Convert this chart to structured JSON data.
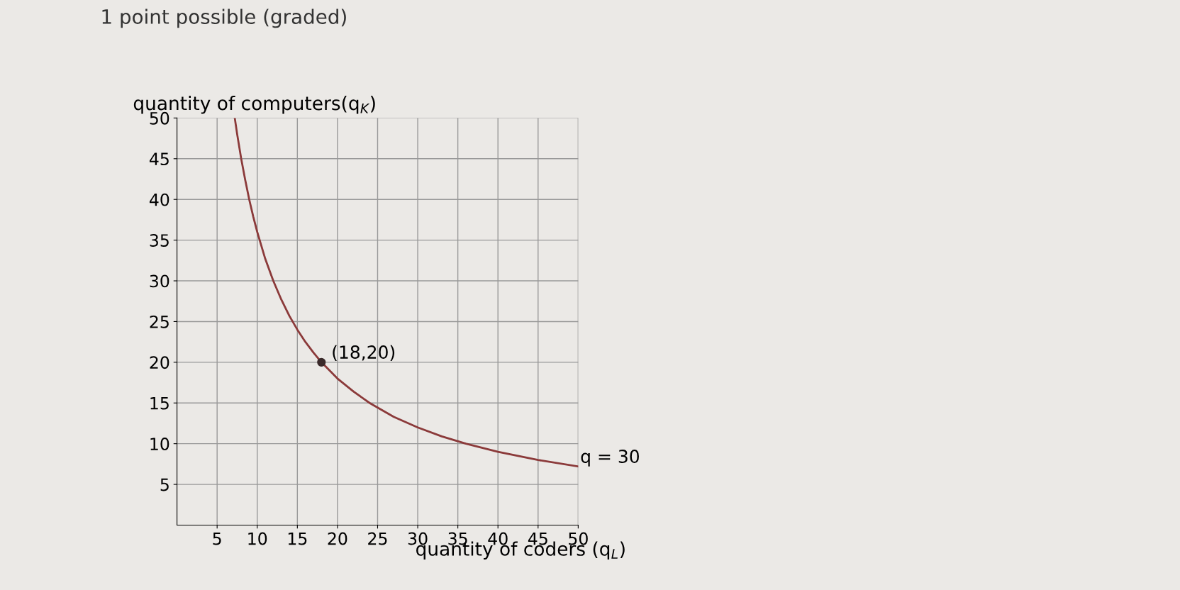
{
  "chart_data": {
    "type": "line",
    "title": "1 point possible (graded)",
    "xlabel": "quantity of coders (q$_{L}$)",
    "ylabel": "quantity of computers(q$_{K}$)",
    "series": [
      {
        "color": "#8b3a3a",
        "x": [
          7.2,
          7.5,
          8,
          8.5,
          9,
          9.5,
          10,
          11,
          12,
          13,
          14,
          15,
          16,
          17,
          18,
          20,
          22,
          24,
          27,
          30,
          33,
          36,
          40,
          45,
          50
        ],
        "values": [
          50,
          48,
          45,
          42.4,
          40,
          37.9,
          36,
          32.7,
          30,
          27.7,
          25.7,
          24,
          22.5,
          21.2,
          20,
          18,
          16.4,
          15,
          13.3,
          12,
          10.9,
          10,
          9,
          8,
          7.2
        ]
      },
      {
        "type": "scatter",
        "color": "#3a2a2a",
        "x": [
          18
        ],
        "values": [
          20
        ]
      }
    ],
    "annotations": [
      {
        "text": "(18,20)",
        "x": 18,
        "y": 20
      },
      {
        "text": "q = 30",
        "x": 50,
        "y": 7.2
      }
    ],
    "xlim": [
      0,
      50
    ],
    "ylim": [
      0,
      50
    ],
    "xticks": [
      5,
      10,
      15,
      20,
      25,
      30,
      35,
      40,
      45,
      50
    ],
    "yticks": [
      5,
      10,
      15,
      20,
      25,
      30,
      35,
      40,
      45,
      50
    ],
    "grid": true
  }
}
